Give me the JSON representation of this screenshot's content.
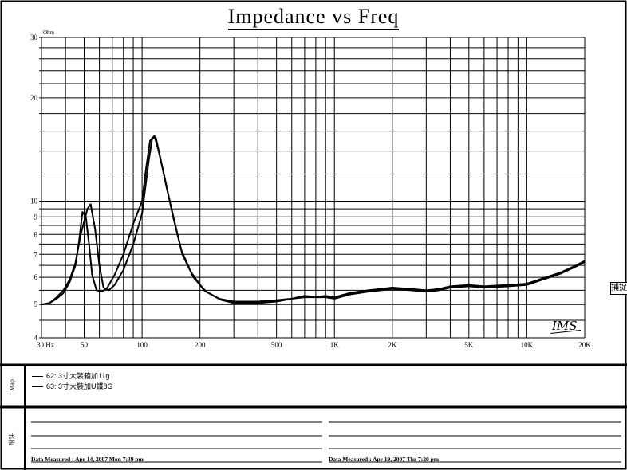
{
  "chart_data": {
    "type": "line",
    "title": "Impedance vs Freq",
    "ylabel": "Ohm",
    "xscale": "log",
    "yscale": "log",
    "xlim": [
      30,
      20000
    ],
    "ylim": [
      4,
      30
    ],
    "x_tick_labels": [
      {
        "value": 30,
        "label": "30 Hz"
      },
      {
        "value": 50,
        "label": "50"
      },
      {
        "value": 100,
        "label": "100"
      },
      {
        "value": 200,
        "label": "200"
      },
      {
        "value": 500,
        "label": "500"
      },
      {
        "value": 1000,
        "label": "1K"
      },
      {
        "value": 2000,
        "label": "2K"
      },
      {
        "value": 5000,
        "label": "5K"
      },
      {
        "value": 10000,
        "label": "10K"
      },
      {
        "value": 20000,
        "label": "20K"
      }
    ],
    "y_tick_labels": [
      {
        "value": 4,
        "label": "4"
      },
      {
        "value": 5,
        "label": "5"
      },
      {
        "value": 6,
        "label": "6"
      },
      {
        "value": 7,
        "label": "7"
      },
      {
        "value": 8,
        "label": "8"
      },
      {
        "value": 9,
        "label": "9"
      },
      {
        "value": 10,
        "label": "10"
      },
      {
        "value": 20,
        "label": "20"
      },
      {
        "value": 30,
        "label": "30"
      }
    ],
    "grid": true,
    "series": [
      {
        "name": "62: 3寸大裝箱加11g",
        "points": [
          [
            30,
            5.0
          ],
          [
            33,
            5.05
          ],
          [
            36,
            5.2
          ],
          [
            39,
            5.4
          ],
          [
            42,
            5.8
          ],
          [
            45,
            6.5
          ],
          [
            47,
            7.6
          ],
          [
            49,
            9.3
          ],
          [
            51,
            9.0
          ],
          [
            53,
            7.5
          ],
          [
            55,
            6.1
          ],
          [
            58,
            5.5
          ],
          [
            62,
            5.45
          ],
          [
            66,
            5.6
          ],
          [
            72,
            6.1
          ],
          [
            80,
            7.0
          ],
          [
            90,
            8.6
          ],
          [
            100,
            10.0
          ],
          [
            105,
            12.5
          ],
          [
            110,
            15.0
          ],
          [
            116,
            15.5
          ],
          [
            122,
            14.0
          ],
          [
            132,
            11.5
          ],
          [
            145,
            9.0
          ],
          [
            160,
            7.2
          ],
          [
            180,
            6.2
          ],
          [
            210,
            5.5
          ],
          [
            250,
            5.2
          ],
          [
            300,
            5.1
          ],
          [
            400,
            5.1
          ],
          [
            500,
            5.15
          ],
          [
            600,
            5.2
          ],
          [
            700,
            5.3
          ],
          [
            800,
            5.25
          ],
          [
            900,
            5.3
          ],
          [
            1000,
            5.25
          ],
          [
            1200,
            5.4
          ],
          [
            1500,
            5.5
          ],
          [
            2000,
            5.6
          ],
          [
            2500,
            5.55
          ],
          [
            3000,
            5.5
          ],
          [
            3500,
            5.55
          ],
          [
            4000,
            5.65
          ],
          [
            5000,
            5.7
          ],
          [
            6000,
            5.65
          ],
          [
            8000,
            5.7
          ],
          [
            10000,
            5.75
          ],
          [
            12000,
            5.95
          ],
          [
            15000,
            6.2
          ],
          [
            18000,
            6.5
          ],
          [
            20000,
            6.7
          ]
        ]
      },
      {
        "name": "63: 3寸大裝加U鐵8G",
        "points": [
          [
            30,
            5.0
          ],
          [
            33,
            5.05
          ],
          [
            36,
            5.25
          ],
          [
            39,
            5.5
          ],
          [
            42,
            5.9
          ],
          [
            45,
            6.6
          ],
          [
            48,
            8.0
          ],
          [
            52,
            9.5
          ],
          [
            54,
            9.8
          ],
          [
            57,
            8.3
          ],
          [
            60,
            6.5
          ],
          [
            63,
            5.6
          ],
          [
            67,
            5.5
          ],
          [
            72,
            5.7
          ],
          [
            80,
            6.3
          ],
          [
            90,
            7.5
          ],
          [
            100,
            9.2
          ],
          [
            108,
            13.0
          ],
          [
            113,
            15.3
          ],
          [
            118,
            15.3
          ],
          [
            124,
            13.5
          ],
          [
            134,
            11.0
          ],
          [
            147,
            8.8
          ],
          [
            162,
            7.0
          ],
          [
            185,
            6.0
          ],
          [
            215,
            5.45
          ],
          [
            260,
            5.15
          ],
          [
            300,
            5.05
          ],
          [
            400,
            5.05
          ],
          [
            500,
            5.1
          ],
          [
            600,
            5.2
          ],
          [
            700,
            5.25
          ],
          [
            800,
            5.25
          ],
          [
            900,
            5.25
          ],
          [
            1000,
            5.2
          ],
          [
            1200,
            5.35
          ],
          [
            1500,
            5.45
          ],
          [
            2000,
            5.55
          ],
          [
            2500,
            5.5
          ],
          [
            3000,
            5.45
          ],
          [
            3500,
            5.5
          ],
          [
            4000,
            5.6
          ],
          [
            5000,
            5.65
          ],
          [
            6000,
            5.6
          ],
          [
            8000,
            5.65
          ],
          [
            10000,
            5.7
          ],
          [
            12000,
            5.9
          ],
          [
            15000,
            6.15
          ],
          [
            18000,
            6.45
          ],
          [
            20000,
            6.65
          ]
        ]
      }
    ]
  },
  "panels": {
    "map_label": "Map",
    "notes_label": "附注",
    "measured_left": "Data Measured : Apr 14, 2007  Mon  7:39 pm",
    "measured_right": "Data Measured : Apr 19, 2007  Thr  7:20 pm"
  },
  "edge_tag": "捕捉",
  "logo_text": "IMS"
}
